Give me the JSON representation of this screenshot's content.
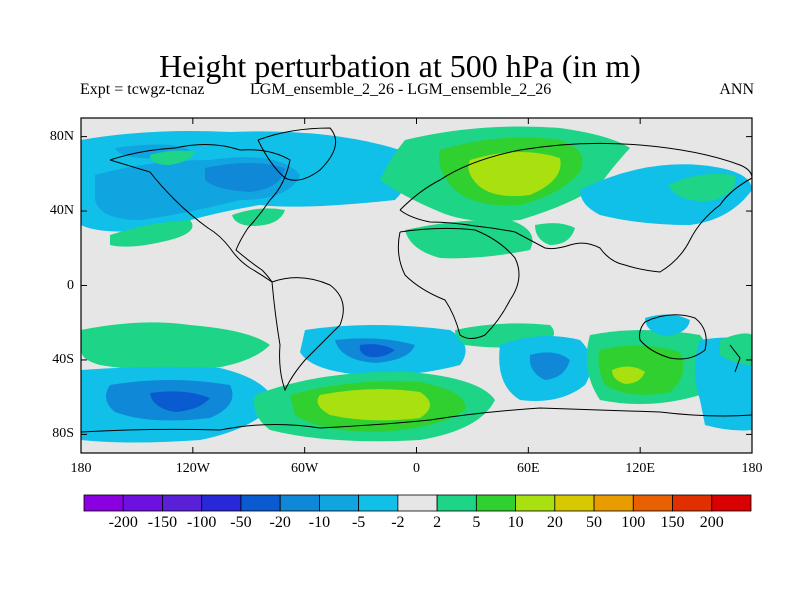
{
  "title": "Height perturbation at 500 hPa (in m)",
  "subtitle_left": "Expt = tcwgz-tcnaz",
  "subtitle_center": "LGM_ensemble_2_26 - LGM_ensemble_2_26",
  "subtitle_right": "ANN",
  "lat_ticks": [
    {
      "label": "80N",
      "value": 80
    },
    {
      "label": "40N",
      "value": 40
    },
    {
      "label": "0",
      "value": 0
    },
    {
      "label": "40S",
      "value": -40
    },
    {
      "label": "80S",
      "value": -80
    }
  ],
  "lon_ticks": [
    {
      "label": "180",
      "value": -180
    },
    {
      "label": "120W",
      "value": -120
    },
    {
      "label": "60W",
      "value": -60
    },
    {
      "label": "0",
      "value": 0
    },
    {
      "label": "60E",
      "value": 60
    },
    {
      "label": "120E",
      "value": 120
    },
    {
      "label": "180",
      "value": 180
    }
  ],
  "colorbar": {
    "colors": [
      "#8a00e0",
      "#6e10e0",
      "#5a20d8",
      "#2828d8",
      "#0a5ad0",
      "#1088d8",
      "#10a4e0",
      "#10c0e8",
      "#e6e6e6",
      "#1ed486",
      "#30d030",
      "#a8e010",
      "#d8c800",
      "#e89c00",
      "#e86000",
      "#e03000",
      "#d80000"
    ],
    "labels": [
      "-200",
      "-150",
      "-100",
      "-50",
      "-20",
      "-10",
      "-5",
      "-2",
      "2",
      "5",
      "10",
      "20",
      "50",
      "100",
      "150",
      "200"
    ]
  },
  "colors": {
    "background_field": "#e6e6e6"
  }
}
